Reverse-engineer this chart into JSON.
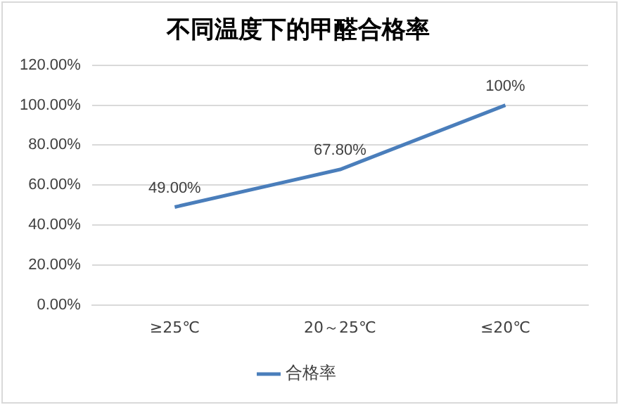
{
  "chart_data": {
    "type": "line",
    "title": "不同温度下的甲醛合格率",
    "categories": [
      "≥25℃",
      "20～25℃",
      "≤20℃"
    ],
    "series": [
      {
        "name": "合格率",
        "color": "#4a7ebb",
        "values": [
          49,
          67.8,
          100
        ],
        "value_labels": [
          "49.00%",
          "67.80%",
          "100%"
        ]
      }
    ],
    "ylim": [
      0,
      120
    ],
    "yticks": [
      {
        "value": 0,
        "label": "0.00%"
      },
      {
        "value": 20,
        "label": "20.00%"
      },
      {
        "value": 40,
        "label": "40.00%"
      },
      {
        "value": 60,
        "label": "60.00%"
      },
      {
        "value": 80,
        "label": "80.00%"
      },
      {
        "value": 100,
        "label": "100.00%"
      },
      {
        "value": 120,
        "label": "120.00%"
      }
    ],
    "grid": "y",
    "legend": "bottom",
    "marker": "none",
    "line_style": "solid"
  }
}
